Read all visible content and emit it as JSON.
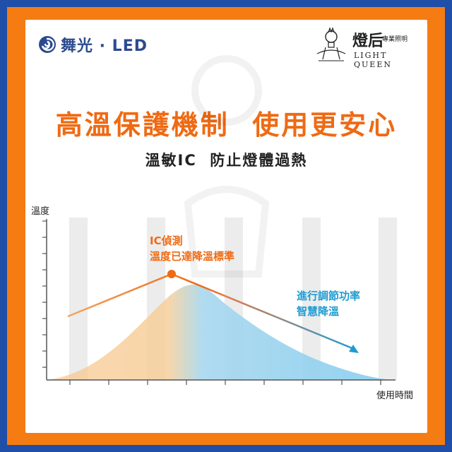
{
  "brand": {
    "name": "舞光 · LED",
    "logo_icon": "swirl-logo-icon"
  },
  "light_queen": {
    "name_zh": "燈后",
    "sub_zh": "專業照明",
    "name_en": "LIGHT QUEEN",
    "icon": "lamp-mascot-icon"
  },
  "headline": "高溫保護機制  使用更安心",
  "subheadline": "溫敏IC  防止燈體過熱",
  "chart": {
    "y_label": "溫度",
    "x_label": "使用時間",
    "annotation_peak_line1": "IC偵測",
    "annotation_peak_line2": "溫度已達降溫標準",
    "annotation_down_line1": "進行調節功率",
    "annotation_down_line2": "智慧降溫"
  },
  "colors": {
    "orange": "#ef6a13",
    "blue": "#1f9bd2",
    "frame_blue": "#1f4fa8",
    "frame_orange": "#f57c12"
  }
}
